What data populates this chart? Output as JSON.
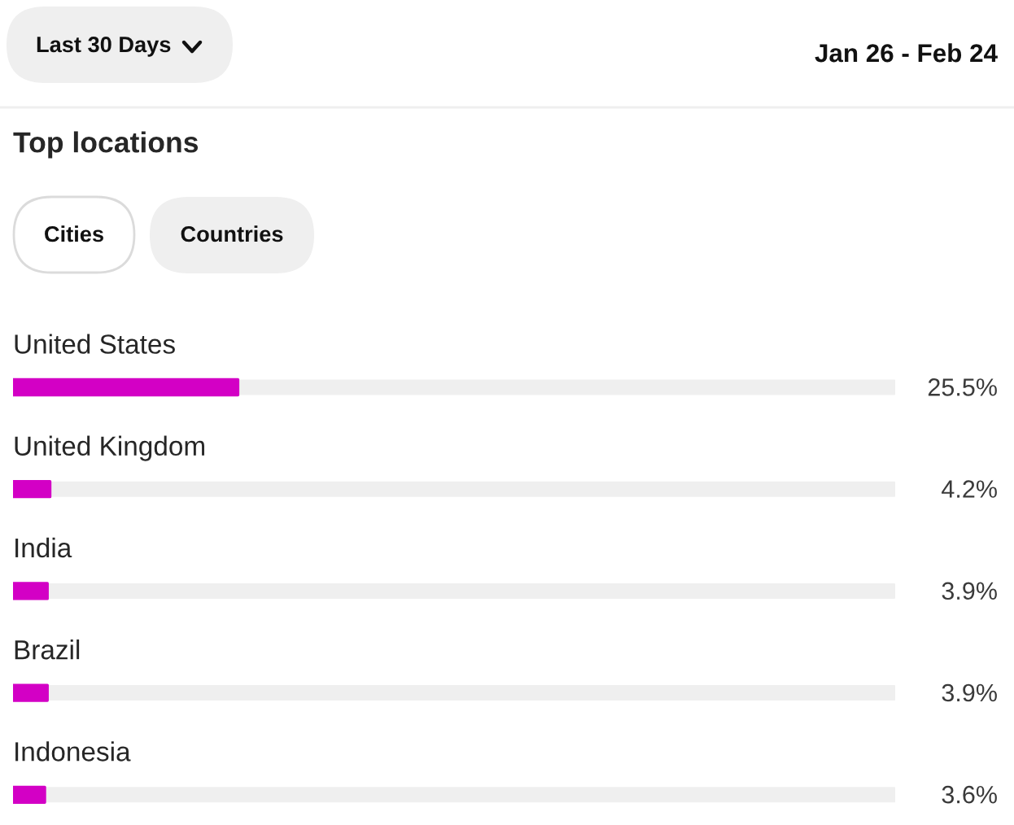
{
  "chart_data": {
    "type": "bar",
    "orientation": "horizontal",
    "title": "Top locations",
    "annotations": [
      "Last 30 Days",
      "Jan 26 - Feb 24",
      "Cities",
      "Countries"
    ],
    "categories": [
      "United States",
      "United Kingdom",
      "India",
      "Brazil",
      "Indonesia"
    ],
    "values": [
      25.5,
      4.2,
      3.9,
      3.9,
      3.6
    ],
    "value_labels": [
      "25.5%",
      "4.2%",
      "3.9%",
      "3.9%",
      "3.6%"
    ],
    "color": "#d300c5",
    "xlim": [
      0,
      100
    ],
    "tick_labels": "y"
  }
}
